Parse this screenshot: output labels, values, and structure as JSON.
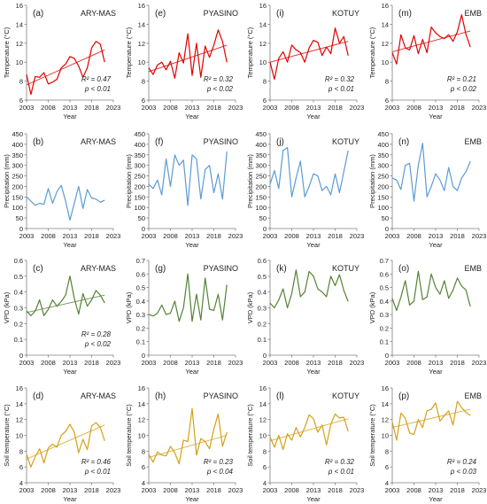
{
  "chart_data": [
    {
      "type": "line",
      "panel_label": "(a)",
      "site": "ARY-MAS",
      "ylabel": "Temperature (°C)",
      "xlabel": "Year",
      "ylim": [
        6,
        16
      ],
      "yticks": [
        6,
        8,
        10,
        12,
        14,
        16
      ],
      "xlim": [
        2003,
        2023
      ],
      "xticks": [
        2003,
        2008,
        2013,
        2018,
        2023
      ],
      "color": "#e00000",
      "annotation": [
        "R² = 0.47",
        "p < 0.01"
      ],
      "x": [
        2003,
        2004,
        2005,
        2006,
        2007,
        2008,
        2009,
        2010,
        2011,
        2012,
        2013,
        2014,
        2015,
        2016,
        2017,
        2018,
        2019,
        2020,
        2021
      ],
      "values": [
        8.7,
        6.6,
        8.5,
        8.4,
        8.9,
        7.7,
        7.9,
        8.2,
        9.4,
        9.8,
        10.6,
        10.4,
        9.6,
        8.4,
        9.4,
        11.5,
        12.2,
        11.9,
        10.0
      ],
      "trend": [
        7.6,
        11.3
      ]
    },
    {
      "type": "line",
      "panel_label": "(e)",
      "site": "PYASINO",
      "ylabel": "Temperature (°C)",
      "xlabel": "Year",
      "ylim": [
        6,
        16
      ],
      "yticks": [
        6,
        8,
        10,
        12,
        14,
        16
      ],
      "xlim": [
        2003,
        2023
      ],
      "xticks": [
        2003,
        2008,
        2013,
        2018,
        2023
      ],
      "color": "#e00000",
      "annotation": [
        "R² = 0.32",
        "p < 0.02"
      ],
      "x": [
        2003,
        2004,
        2005,
        2006,
        2007,
        2008,
        2009,
        2010,
        2011,
        2012,
        2013,
        2014,
        2015,
        2016,
        2017,
        2018,
        2019,
        2020,
        2021
      ],
      "values": [
        9.4,
        8.7,
        9.7,
        10.0,
        9.2,
        10.1,
        8.3,
        11.0,
        9.9,
        13.0,
        8.6,
        12.0,
        8.4,
        11.7,
        10.5,
        11.8,
        13.4,
        12.2,
        10.0
      ],
      "trend": [
        9.0,
        11.8
      ]
    },
    {
      "type": "line",
      "panel_label": "(i)",
      "site": "KOTUY",
      "ylabel": "Temperature (°C)",
      "xlabel": "Year",
      "ylim": [
        6,
        16
      ],
      "yticks": [
        6,
        8,
        10,
        12,
        14,
        16
      ],
      "xlim": [
        2003,
        2023
      ],
      "xticks": [
        2003,
        2008,
        2013,
        2018,
        2023
      ],
      "color": "#e00000",
      "annotation": [
        "R² = 0.32",
        "p < 0.01"
      ],
      "x": [
        2003,
        2004,
        2005,
        2006,
        2007,
        2008,
        2009,
        2010,
        2011,
        2012,
        2013,
        2014,
        2015,
        2016,
        2017,
        2018,
        2019,
        2020,
        2021
      ],
      "values": [
        10.0,
        8.2,
        10.4,
        11.1,
        10.0,
        11.8,
        11.3,
        11.0,
        10.0,
        11.5,
        12.3,
        12.1,
        10.7,
        11.6,
        10.9,
        13.6,
        12.0,
        12.7,
        10.7
      ],
      "trend": [
        10.0,
        12.2
      ]
    },
    {
      "type": "line",
      "panel_label": "(m)",
      "site": "EMB",
      "ylabel": "Temperature (°C)",
      "xlabel": "Year",
      "ylim": [
        6,
        16
      ],
      "yticks": [
        6,
        8,
        10,
        12,
        14,
        16
      ],
      "xlim": [
        2003,
        2023
      ],
      "xticks": [
        2003,
        2008,
        2013,
        2018,
        2023
      ],
      "color": "#e00000",
      "annotation": [
        "R² = 0.21",
        "p < 0.02"
      ],
      "x": [
        2003,
        2004,
        2005,
        2006,
        2007,
        2008,
        2009,
        2010,
        2011,
        2012,
        2013,
        2014,
        2015,
        2016,
        2017,
        2018,
        2019,
        2020,
        2021
      ],
      "values": [
        11.0,
        9.8,
        12.9,
        11.5,
        11.3,
        12.8,
        10.9,
        12.4,
        11.0,
        13.7,
        13.1,
        12.7,
        12.5,
        12.9,
        12.2,
        13.2,
        15.0,
        12.9,
        11.6
      ],
      "trend": [
        11.1,
        13.3
      ]
    },
    {
      "type": "line",
      "panel_label": "(b)",
      "site": "ARY-MAS",
      "ylabel": "Precipitation (mm)",
      "xlabel": "Year",
      "ylim": [
        0,
        450
      ],
      "yticks": [
        0,
        50,
        100,
        150,
        200,
        250,
        300,
        350,
        400,
        450
      ],
      "xlim": [
        2003,
        2023
      ],
      "xticks": [
        2003,
        2008,
        2013,
        2018,
        2023
      ],
      "color": "#5b9bd5",
      "x": [
        2003,
        2004,
        2005,
        2006,
        2007,
        2008,
        2009,
        2010,
        2011,
        2012,
        2013,
        2014,
        2015,
        2016,
        2017,
        2018,
        2019,
        2020,
        2021
      ],
      "values": [
        150,
        130,
        110,
        120,
        115,
        190,
        120,
        175,
        205,
        130,
        40,
        120,
        200,
        95,
        185,
        145,
        140,
        125,
        135
      ]
    },
    {
      "type": "line",
      "panel_label": "(f)",
      "site": "PYASINO",
      "ylabel": "Precipitation (mm)",
      "xlabel": "Year",
      "ylim": [
        0,
        450
      ],
      "yticks": [
        0,
        50,
        100,
        150,
        200,
        250,
        300,
        350,
        400,
        450
      ],
      "xlim": [
        2003,
        2023
      ],
      "xticks": [
        2003,
        2008,
        2013,
        2018,
        2023
      ],
      "color": "#5b9bd5",
      "x": [
        2003,
        2004,
        2005,
        2006,
        2007,
        2008,
        2009,
        2010,
        2011,
        2012,
        2013,
        2014,
        2015,
        2016,
        2017,
        2018,
        2019,
        2020,
        2021
      ],
      "values": [
        210,
        190,
        230,
        160,
        330,
        200,
        350,
        300,
        325,
        110,
        350,
        330,
        140,
        280,
        300,
        170,
        260,
        140,
        365
      ]
    },
    {
      "type": "line",
      "panel_label": "(j)",
      "site": "KOTUY",
      "ylabel": "Precipitation (mm)",
      "xlabel": "Year",
      "ylim": [
        0,
        450
      ],
      "yticks": [
        0,
        50,
        100,
        150,
        200,
        250,
        300,
        350,
        400,
        450
      ],
      "xlim": [
        2003,
        2023
      ],
      "xticks": [
        2003,
        2008,
        2013,
        2018,
        2023
      ],
      "color": "#5b9bd5",
      "x": [
        2003,
        2004,
        2005,
        2006,
        2007,
        2008,
        2009,
        2010,
        2011,
        2012,
        2013,
        2014,
        2015,
        2016,
        2017,
        2018,
        2019,
        2020,
        2021
      ],
      "values": [
        210,
        275,
        190,
        370,
        385,
        150,
        240,
        320,
        150,
        200,
        260,
        250,
        180,
        200,
        160,
        260,
        170,
        270,
        370
      ]
    },
    {
      "type": "line",
      "panel_label": "(n)",
      "site": "EMB",
      "ylabel": "Precipitation (mm)",
      "xlabel": "Year",
      "ylim": [
        0,
        450
      ],
      "yticks": [
        0,
        50,
        100,
        150,
        200,
        250,
        300,
        350,
        400,
        450
      ],
      "xlim": [
        2003,
        2023
      ],
      "xticks": [
        2003,
        2008,
        2013,
        2018,
        2023
      ],
      "color": "#5b9bd5",
      "x": [
        2003,
        2004,
        2005,
        2006,
        2007,
        2008,
        2009,
        2010,
        2011,
        2012,
        2013,
        2014,
        2015,
        2016,
        2017,
        2018,
        2019,
        2020,
        2021
      ],
      "values": [
        240,
        230,
        185,
        300,
        310,
        130,
        300,
        405,
        150,
        200,
        260,
        230,
        180,
        290,
        200,
        180,
        240,
        270,
        320
      ]
    },
    {
      "type": "line",
      "panel_label": "(c)",
      "site": "ARY-MAS",
      "ylabel": "VPD (kPa)",
      "xlabel": "Year",
      "ylim": [
        0,
        0.6
      ],
      "yticks": [
        0,
        0.1,
        0.2,
        0.3,
        0.4,
        0.5,
        0.6
      ],
      "xlim": [
        2003,
        2023
      ],
      "xticks": [
        2003,
        2008,
        2013,
        2018,
        2023
      ],
      "color": "#548235",
      "annotation": [
        "R² = 0.28",
        "p < 0.02"
      ],
      "x": [
        2003,
        2004,
        2005,
        2006,
        2007,
        2008,
        2009,
        2010,
        2011,
        2012,
        2013,
        2014,
        2015,
        2016,
        2017,
        2018,
        2019,
        2020,
        2021
      ],
      "values": [
        0.28,
        0.25,
        0.28,
        0.35,
        0.25,
        0.29,
        0.35,
        0.31,
        0.34,
        0.38,
        0.5,
        0.36,
        0.26,
        0.39,
        0.31,
        0.35,
        0.41,
        0.38,
        0.33
      ],
      "trend": [
        0.27,
        0.38
      ]
    },
    {
      "type": "line",
      "panel_label": "(g)",
      "site": "PYASINO",
      "ylabel": "VPD (kPa)",
      "xlabel": "Year",
      "ylim": [
        0,
        0.7
      ],
      "yticks": [
        0,
        0.1,
        0.2,
        0.3,
        0.4,
        0.5,
        0.6,
        0.7
      ],
      "xlim": [
        2003,
        2023
      ],
      "xticks": [
        2003,
        2008,
        2013,
        2018,
        2023
      ],
      "color": "#548235",
      "x": [
        2003,
        2004,
        2005,
        2006,
        2007,
        2008,
        2009,
        2010,
        2011,
        2012,
        2013,
        2014,
        2015,
        2016,
        2017,
        2018,
        2019,
        2020,
        2021
      ],
      "values": [
        0.3,
        0.29,
        0.31,
        0.37,
        0.3,
        0.31,
        0.4,
        0.25,
        0.35,
        0.6,
        0.25,
        0.45,
        0.26,
        0.57,
        0.34,
        0.33,
        0.45,
        0.26,
        0.52
      ]
    },
    {
      "type": "line",
      "panel_label": "(k)",
      "site": "KOTUY",
      "ylabel": "VPD (kPa)",
      "xlabel": "Year",
      "ylim": [
        0,
        0.6
      ],
      "yticks": [
        0,
        0.1,
        0.2,
        0.3,
        0.4,
        0.5,
        0.6
      ],
      "xlim": [
        2003,
        2023
      ],
      "xticks": [
        2003,
        2008,
        2013,
        2018,
        2023
      ],
      "color": "#548235",
      "x": [
        2003,
        2004,
        2005,
        2006,
        2007,
        2008,
        2009,
        2010,
        2011,
        2012,
        2013,
        2014,
        2015,
        2016,
        2017,
        2018,
        2019,
        2020,
        2021
      ],
      "values": [
        0.33,
        0.3,
        0.35,
        0.42,
        0.3,
        0.39,
        0.54,
        0.37,
        0.4,
        0.53,
        0.5,
        0.42,
        0.4,
        0.37,
        0.5,
        0.44,
        0.51,
        0.41,
        0.34
      ]
    },
    {
      "type": "line",
      "panel_label": "(o)",
      "site": "EMB",
      "ylabel": "VPD (kPa)",
      "xlabel": "Year",
      "ylim": [
        0,
        0.7
      ],
      "yticks": [
        0,
        0.1,
        0.2,
        0.3,
        0.4,
        0.5,
        0.6,
        0.7
      ],
      "xlim": [
        2003,
        2023
      ],
      "xticks": [
        2003,
        2008,
        2013,
        2018,
        2023
      ],
      "color": "#548235",
      "x": [
        2003,
        2004,
        2005,
        2006,
        2007,
        2008,
        2009,
        2010,
        2011,
        2012,
        2013,
        2014,
        2015,
        2016,
        2017,
        2018,
        2019,
        2020,
        2021
      ],
      "values": [
        0.42,
        0.33,
        0.43,
        0.55,
        0.37,
        0.4,
        0.62,
        0.41,
        0.43,
        0.6,
        0.5,
        0.45,
        0.55,
        0.42,
        0.48,
        0.57,
        0.51,
        0.48,
        0.36
      ]
    },
    {
      "type": "line",
      "panel_label": "(d)",
      "site": "ARY-MAS",
      "ylabel": "Soil temperature (°C)",
      "xlabel": "Year",
      "ylim": [
        4,
        16
      ],
      "yticks": [
        4,
        6,
        8,
        10,
        12,
        14,
        16
      ],
      "xlim": [
        2003,
        2023
      ],
      "xticks": [
        2003,
        2008,
        2013,
        2018,
        2023
      ],
      "color": "#d4a017",
      "annotation": [
        "R² = 0.46",
        "p < 0.01"
      ],
      "x": [
        2003,
        2004,
        2005,
        2006,
        2007,
        2008,
        2009,
        2010,
        2011,
        2012,
        2013,
        2014,
        2015,
        2016,
        2017,
        2018,
        2019,
        2020,
        2021
      ],
      "values": [
        7.6,
        6.0,
        7.3,
        8.3,
        6.5,
        8.4,
        8.9,
        8.5,
        10.0,
        10.5,
        11.4,
        10.4,
        7.8,
        9.5,
        8.2,
        11.2,
        11.6,
        11.0,
        9.3
      ],
      "trend": [
        7.0,
        11.3
      ]
    },
    {
      "type": "line",
      "panel_label": "(h)",
      "site": "PYASINO",
      "ylabel": "Soil temperature (°C)",
      "xlabel": "Year",
      "ylim": [
        4,
        16
      ],
      "yticks": [
        4,
        6,
        8,
        10,
        12,
        14,
        16
      ],
      "xlim": [
        2003,
        2023
      ],
      "xticks": [
        2003,
        2008,
        2013,
        2018,
        2023
      ],
      "color": "#d4a017",
      "annotation": [
        "R² = 0.23",
        "p < 0.04"
      ],
      "x": [
        2003,
        2004,
        2005,
        2006,
        2007,
        2008,
        2009,
        2010,
        2011,
        2012,
        2013,
        2014,
        2015,
        2016,
        2017,
        2018,
        2019,
        2020,
        2021
      ],
      "values": [
        7.6,
        6.6,
        7.9,
        7.5,
        7.4,
        8.6,
        7.8,
        6.4,
        9.4,
        9.2,
        13.4,
        7.5,
        9.6,
        9.2,
        8.3,
        10.8,
        12.7,
        8.6,
        10.4
      ],
      "trend": [
        7.2,
        10.0
      ]
    },
    {
      "type": "line",
      "panel_label": "(l)",
      "site": "KOTUY",
      "ylabel": "Soil temperature (°C)",
      "xlabel": "Year",
      "ylim": [
        4,
        16
      ],
      "yticks": [
        4,
        6,
        8,
        10,
        12,
        14,
        16
      ],
      "xlim": [
        2003,
        2023
      ],
      "xticks": [
        2003,
        2008,
        2013,
        2018,
        2023
      ],
      "color": "#d4a017",
      "annotation": [
        "R² = 0.32",
        "p < 0.01"
      ],
      "x": [
        2003,
        2004,
        2005,
        2006,
        2007,
        2008,
        2009,
        2010,
        2011,
        2012,
        2013,
        2014,
        2015,
        2016,
        2017,
        2018,
        2019,
        2020,
        2021
      ],
      "values": [
        9.8,
        8.5,
        10.0,
        8.2,
        10.2,
        9.4,
        11.0,
        9.8,
        11.0,
        12.6,
        12.1,
        10.4,
        11.3,
        8.8,
        11.4,
        12.7,
        12.2,
        12.3,
        10.5
      ],
      "trend": [
        9.3,
        12.1
      ]
    },
    {
      "type": "line",
      "panel_label": "(p)",
      "site": "EMB",
      "ylabel": "Soil temperature (°C)",
      "xlabel": "Year",
      "ylim": [
        4,
        16
      ],
      "yticks": [
        4,
        6,
        8,
        10,
        12,
        14,
        16
      ],
      "xlim": [
        2003,
        2023
      ],
      "xticks": [
        2003,
        2008,
        2013,
        2018,
        2023
      ],
      "color": "#d4a017",
      "annotation": [
        "R² = 0.24",
        "p < 0.03"
      ],
      "x": [
        2003,
        2004,
        2005,
        2006,
        2007,
        2008,
        2009,
        2010,
        2011,
        2012,
        2013,
        2014,
        2015,
        2016,
        2017,
        2018,
        2019,
        2020,
        2021
      ],
      "values": [
        11.7,
        9.4,
        12.8,
        12.2,
        10.3,
        10.1,
        12.0,
        11.0,
        13.1,
        13.3,
        14.1,
        11.8,
        12.5,
        13.1,
        11.3,
        14.3,
        13.5,
        12.9,
        12.5
      ],
      "trend": [
        11.0,
        13.3
      ]
    }
  ]
}
